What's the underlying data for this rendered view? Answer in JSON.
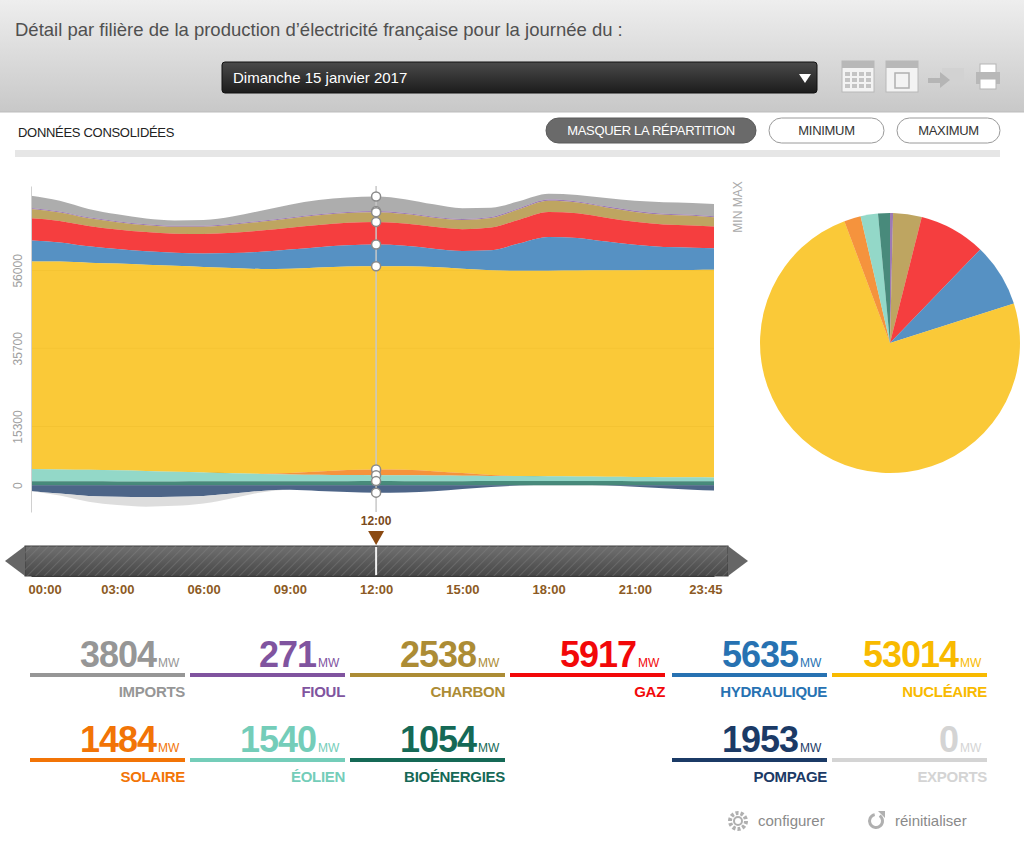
{
  "page": {
    "title": "Détail par filière de la production d’électricité française pour la journée du :",
    "date": "Dimanche 15 janvier 2017",
    "data_status": "DONNÉES CONSOLIDÉES",
    "buttons": [
      "MASQUER LA RÉPARTITION",
      "MINIMUM",
      "MAXIMUM"
    ],
    "range_label": "MIN MAX",
    "actions": [
      "configurer",
      "réinitialiser"
    ]
  },
  "chart_data": [
    {
      "type": "area",
      "stacked": true,
      "grid": true,
      "x": [
        0,
        1,
        2,
        3,
        4,
        5,
        6,
        7,
        8,
        9,
        10,
        11,
        12,
        13,
        14,
        15,
        16,
        17,
        18,
        19,
        20,
        21,
        22,
        23,
        23.75
      ],
      "xlim": [
        0,
        23.75
      ],
      "xticks": [
        {
          "value": 0,
          "label": "00:00"
        },
        {
          "value": 3,
          "label": "03:00"
        },
        {
          "value": 6,
          "label": "06:00"
        },
        {
          "value": 9,
          "label": "09:00"
        },
        {
          "value": 12,
          "label": "12:00"
        },
        {
          "value": 15,
          "label": "15:00"
        },
        {
          "value": 18,
          "label": "18:00"
        },
        {
          "value": 21,
          "label": "21:00"
        },
        {
          "value": 23.75,
          "label": "23:45"
        }
      ],
      "ylim": [
        -7000,
        78000
      ],
      "yticks": [
        0,
        15300,
        35700,
        56000
      ],
      "series": [
        {
          "name": "IMPORTS",
          "color": "#969696",
          "values": [
            3200,
            2800,
            2200,
            1800,
            1500,
            1400,
            1500,
            1900,
            2600,
            3300,
            3700,
            3800,
            3804,
            3600,
            3200,
            2800,
            2400,
            1800,
            1500,
            1700,
            2200,
            2600,
            3000,
            3100,
            3200
          ]
        },
        {
          "name": "FIOUL",
          "color": "#80549f",
          "values": [
            260,
            250,
            240,
            240,
            240,
            240,
            240,
            250,
            260,
            265,
            270,
            270,
            271,
            270,
            265,
            265,
            270,
            300,
            320,
            310,
            290,
            280,
            270,
            265,
            260
          ]
        },
        {
          "name": "CHARBON",
          "color": "#ac8c35",
          "values": [
            2400,
            2200,
            2000,
            1900,
            1800,
            1800,
            1900,
            2100,
            2300,
            2400,
            2500,
            2500,
            2538,
            2500,
            2400,
            2400,
            2500,
            2700,
            2900,
            2800,
            2700,
            2600,
            2500,
            2500,
            2400
          ]
        },
        {
          "name": "GAZ",
          "color": "#f20809",
          "values": [
            5800,
            5600,
            5300,
            5100,
            5000,
            5000,
            5100,
            5300,
            5500,
            5700,
            5800,
            5900,
            5917,
            5800,
            5700,
            5700,
            5900,
            6200,
            6500,
            6400,
            6200,
            6000,
            5900,
            5800,
            5700
          ]
        },
        {
          "name": "HYDRAULIQUE",
          "color": "#2772b2",
          "values": [
            5500,
            5000,
            4300,
            3800,
            3500,
            3400,
            3500,
            3900,
            4500,
            5000,
            5300,
            5500,
            5635,
            5300,
            4800,
            4600,
            5200,
            7200,
            8800,
            8500,
            7500,
            6600,
            6000,
            5800,
            5600
          ]
        },
        {
          "name": "NUCLÉAIRE",
          "color": "#f8ba00",
          "values": [
            54100,
            54200,
            54000,
            53900,
            53800,
            53700,
            53600,
            53500,
            53400,
            53300,
            53200,
            53100,
            53014,
            53100,
            53200,
            53300,
            53400,
            53500,
            53600,
            53700,
            53800,
            53900,
            54000,
            54100,
            54200
          ]
        },
        {
          "name": "SOLAIRE",
          "color": "#f27406",
          "values": [
            0,
            0,
            0,
            0,
            0,
            0,
            0,
            0,
            50,
            350,
            850,
            1300,
            1484,
            1450,
            1150,
            700,
            250,
            20,
            0,
            0,
            0,
            0,
            0,
            0,
            0
          ]
        },
        {
          "name": "ÉOLIEN",
          "color": "#74cdb9",
          "values": [
            3200,
            3100,
            3000,
            2900,
            2700,
            2500,
            2300,
            2100,
            1900,
            1750,
            1650,
            1580,
            1540,
            1500,
            1450,
            1400,
            1350,
            1300,
            1250,
            1200,
            1150,
            1100,
            1050,
            1000,
            950
          ]
        },
        {
          "name": "BIOÉNERGIES",
          "color": "#156956",
          "values": [
            1000,
            1000,
            990,
            980,
            980,
            980,
            990,
            1000,
            1020,
            1040,
            1050,
            1050,
            1054,
            1050,
            1050,
            1050,
            1060,
            1070,
            1080,
            1070,
            1060,
            1050,
            1040,
            1030,
            1020
          ]
        },
        {
          "name": "POMPAGE",
          "color": "#1b3a66",
          "values": [
            -1500,
            -2200,
            -2800,
            -3000,
            -3100,
            -3000,
            -2800,
            -2200,
            -1500,
            -1200,
            -1500,
            -1800,
            -1953,
            -1900,
            -1600,
            -1000,
            -500,
            -100,
            0,
            0,
            -100,
            -400,
            -800,
            -1200,
            -1400
          ]
        },
        {
          "name": "EXPORTS",
          "color": "#d4d4d4",
          "values": [
            0,
            -500,
            -1500,
            -2200,
            -2500,
            -2400,
            -2000,
            -1200,
            -400,
            0,
            0,
            0,
            0,
            0,
            0,
            0,
            0,
            0,
            0,
            0,
            0,
            0,
            0,
            0,
            0
          ]
        }
      ],
      "readout": {
        "label": "12:00",
        "x": 12,
        "unit": "MW",
        "values": [
          3804,
          271,
          2538,
          5917,
          5635,
          53014,
          1484,
          1540,
          1054,
          1953,
          0
        ]
      }
    },
    {
      "type": "pie",
      "values": [
        271,
        2538,
        5917,
        5635,
        53014,
        1484,
        1540,
        1054
      ],
      "colors": [
        "#80549f",
        "#ac8c35",
        "#f20809",
        "#2772b2",
        "#f8ba00",
        "#f27406",
        "#74cdb9",
        "#156956"
      ]
    }
  ]
}
